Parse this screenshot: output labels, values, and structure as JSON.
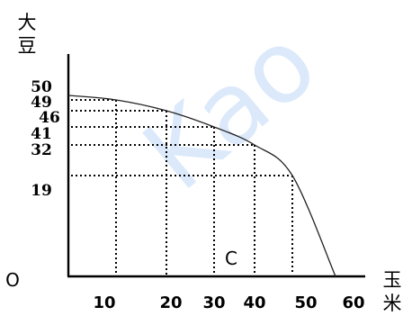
{
  "chart_data": {
    "type": "line",
    "ylabel": "大豆",
    "xlabel": "玉米",
    "origin_label": "O",
    "region_label": "C",
    "x_ticks": [
      "10",
      "20",
      "30",
      "40",
      "50",
      "60"
    ],
    "y_ticks": [
      "50",
      "49",
      "46",
      "41",
      "32",
      "19"
    ],
    "points": [
      {
        "x": 0,
        "y": 50
      },
      {
        "x": 10,
        "y": 49
      },
      {
        "x": 20,
        "y": 46
      },
      {
        "x": 30,
        "y": 41
      },
      {
        "x": 40,
        "y": 32
      },
      {
        "x": 50,
        "y": 19
      },
      {
        "x": 60,
        "y": 0
      }
    ],
    "watermark": "Kao",
    "grid": false,
    "legend": "none"
  }
}
